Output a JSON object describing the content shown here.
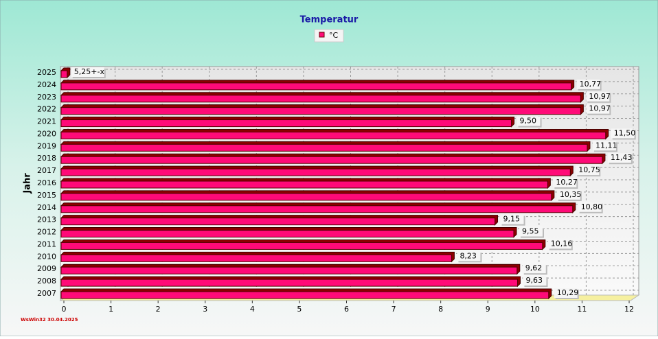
{
  "chart_data": {
    "type": "bar",
    "orientation": "horizontal",
    "title": "Temperatur",
    "y_label": "Jahr",
    "categories": [
      "2007",
      "2008",
      "2009",
      "2010",
      "2011",
      "2012",
      "2013",
      "2014",
      "2015",
      "2016",
      "2017",
      "2018",
      "2019",
      "2020",
      "2021",
      "2022",
      "2023",
      "2024",
      "2025"
    ],
    "series": [
      {
        "name": "°C",
        "color": "#ff0a78",
        "values": [
          10.29,
          9.63,
          9.62,
          8.23,
          10.16,
          9.55,
          9.15,
          10.8,
          10.35,
          10.27,
          10.75,
          11.43,
          11.11,
          11.5,
          9.5,
          10.97,
          10.97,
          10.77,
          0.07
        ],
        "value_labels": [
          "10,29",
          "9,63",
          "9,62",
          "8,23",
          "10,16",
          "9,55",
          "9,15",
          "10,80",
          "10,35",
          "10,27",
          "10,75",
          "11,43",
          "11,11",
          "11,50",
          "9,50",
          "10,97",
          "10,97",
          "10,77",
          null
        ]
      }
    ],
    "annotations": [
      "5,25+-x"
    ],
    "xlim": [
      0,
      12
    ],
    "xticks": [
      0,
      1,
      2,
      3,
      4,
      5,
      6,
      7,
      8,
      9,
      10,
      11,
      12
    ],
    "grid": true,
    "footer": "WsWin32  30.04.2025"
  }
}
